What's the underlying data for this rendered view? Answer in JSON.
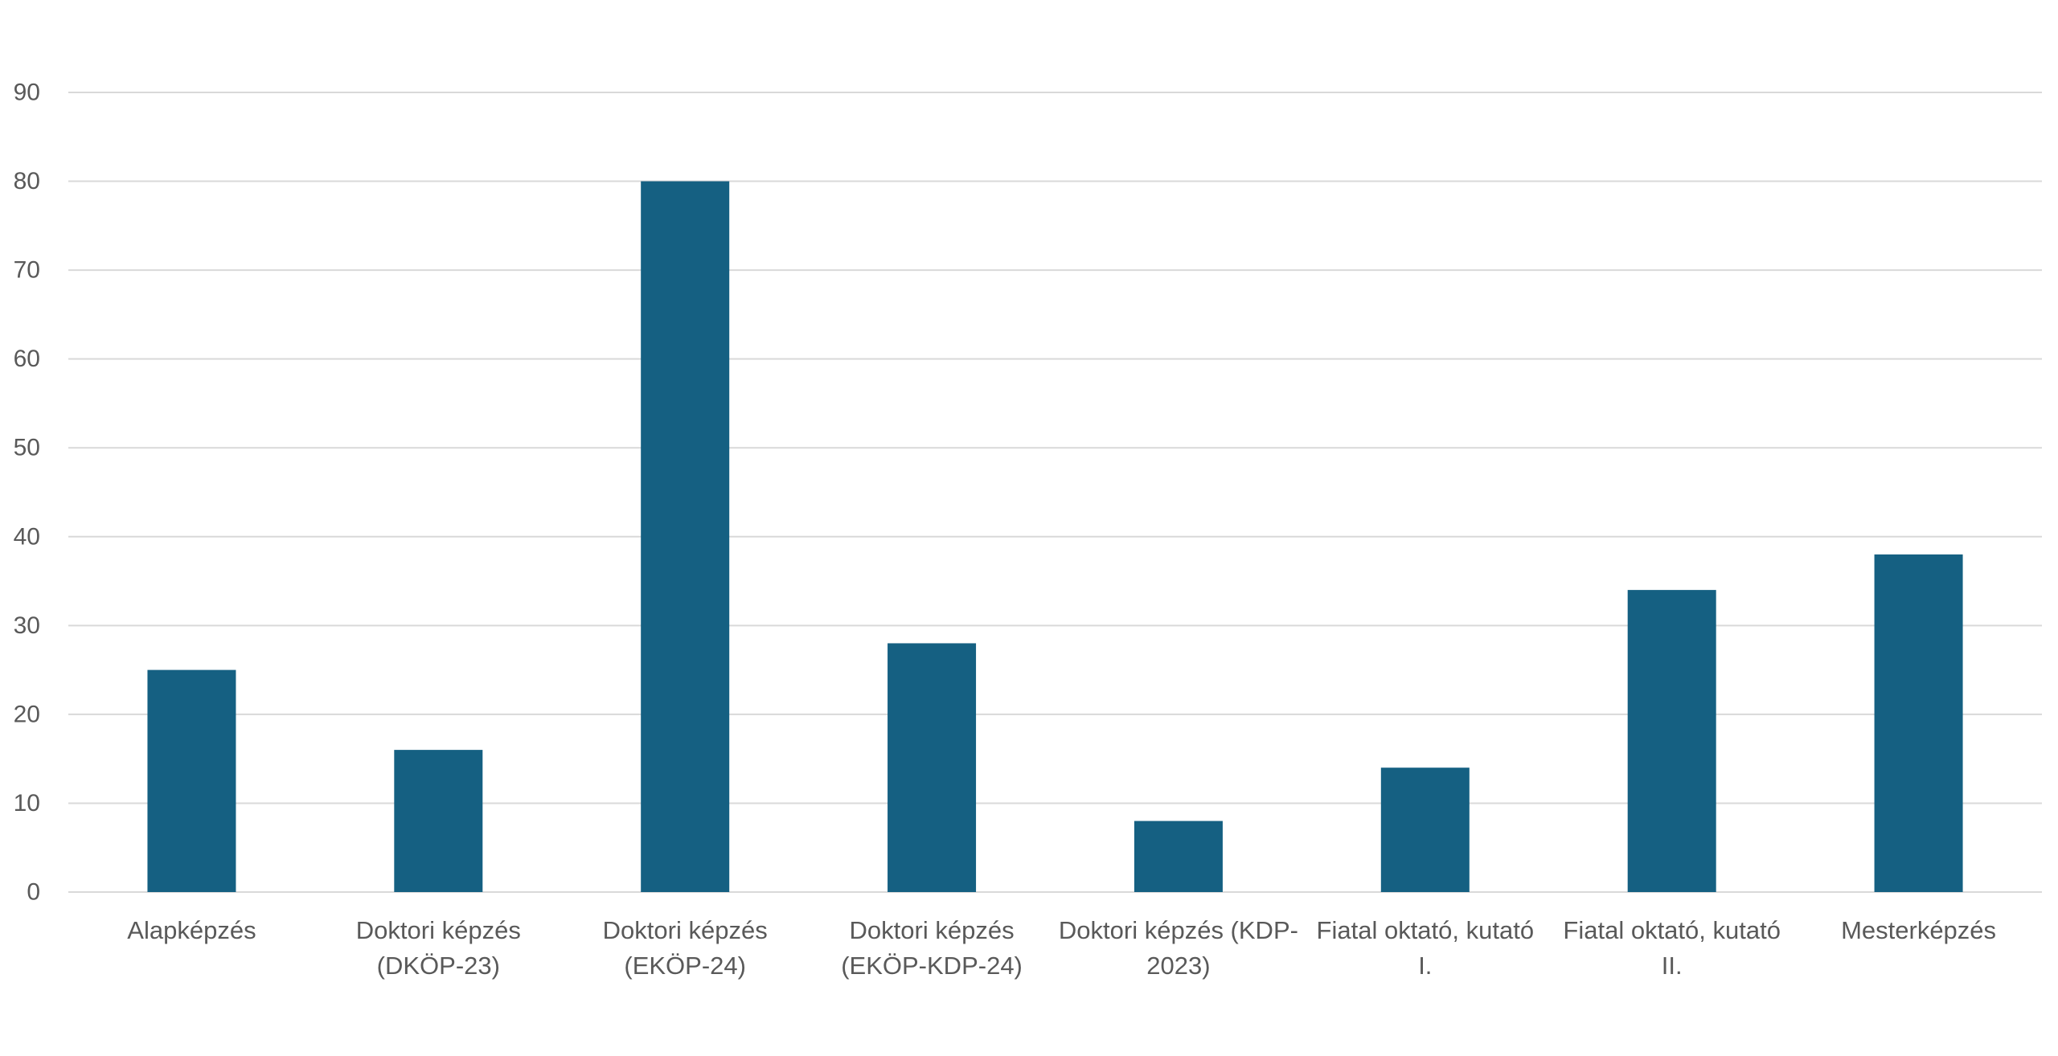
{
  "chart_data": {
    "type": "bar",
    "categories": [
      [
        "Alapképzés"
      ],
      [
        "Doktori képzés",
        "(DKÖP-23)"
      ],
      [
        "Doktori képzés",
        "(EKÖP-24)"
      ],
      [
        "Doktori képzés",
        "(EKÖP-KDP-24)"
      ],
      [
        "Doktori képzés (KDP-",
        "2023)"
      ],
      [
        "Fiatal oktató, kutató",
        "I."
      ],
      [
        "Fiatal oktató, kutató",
        "II."
      ],
      [
        "Mesterképzés"
      ]
    ],
    "values": [
      25,
      16,
      80,
      28,
      8,
      14,
      34,
      38
    ],
    "ylim": [
      0,
      90
    ],
    "yticks": [
      0,
      10,
      20,
      30,
      40,
      50,
      60,
      70,
      80,
      90
    ],
    "grid": true,
    "legend": "none",
    "title": "",
    "xlabel": "",
    "ylabel": "",
    "colors": {
      "bar": "#156082",
      "grid": "#d9d9d9",
      "text": "#595959"
    }
  }
}
